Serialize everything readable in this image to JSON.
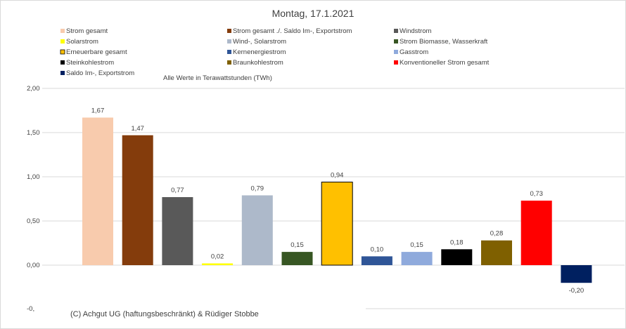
{
  "chart_data": {
    "type": "bar",
    "title": "Montag, 17.1.2021",
    "subtitle": "Alle Werte in Terawattstunden (TWh)",
    "credit": "(C) Achgut UG (haftungsbeschränkt) & Rüdiger Stobbe",
    "ylim": [
      -0.25,
      2.0
    ],
    "yticks": [
      2.0,
      1.5,
      1.0,
      0.5,
      0.0
    ],
    "ytick_labels": [
      "2,00",
      "1,50",
      "1,00",
      "0,50",
      "0,00"
    ],
    "ytick_extra_label": "-0,",
    "grid": true,
    "legend_position": "top",
    "series": [
      {
        "name": "Strom gesamt",
        "value": 1.67,
        "label": "1,67",
        "color": "#F8CBAD",
        "outline": false
      },
      {
        "name": "Strom gesamt ./. Saldo Im-, Exportstrom",
        "value": 1.47,
        "label": "1,47",
        "color": "#843C0C",
        "outline": false
      },
      {
        "name": "Windstrom",
        "value": 0.77,
        "label": "0,77",
        "color": "#595959",
        "outline": false
      },
      {
        "name": "Solarstrom",
        "value": 0.02,
        "label": "0,02",
        "color": "#FFFF00",
        "outline": false
      },
      {
        "name": "Wind-, Solarstrom",
        "value": 0.79,
        "label": "0,79",
        "color": "#ADB9CA",
        "outline": false
      },
      {
        "name": "Strom Biomasse, Wasserkraft",
        "value": 0.15,
        "label": "0,15",
        "color": "#375623",
        "outline": false
      },
      {
        "name": "Erneuerbare gesamt",
        "value": 0.94,
        "label": "0,94",
        "color": "#FFC000",
        "outline": true
      },
      {
        "name": "Kernenergiestrom",
        "value": 0.1,
        "label": "0,10",
        "color": "#2F5597",
        "outline": false
      },
      {
        "name": "Gasstrom",
        "value": 0.15,
        "label": "0,15",
        "color": "#8FAADC",
        "outline": false
      },
      {
        "name": "Steinkohlestrom",
        "value": 0.18,
        "label": "0,18",
        "color": "#000000",
        "outline": false
      },
      {
        "name": "Braunkohlestrom",
        "value": 0.28,
        "label": "0,28",
        "color": "#7F6000",
        "outline": false
      },
      {
        "name": "Konventioneller Strom gesamt",
        "value": 0.73,
        "label": "0,73",
        "color": "#FF0000",
        "outline": false
      },
      {
        "name": "Saldo Im-, Exportstrom",
        "value": -0.2,
        "label": "-0,20",
        "color": "#002060",
        "outline": false
      }
    ]
  }
}
